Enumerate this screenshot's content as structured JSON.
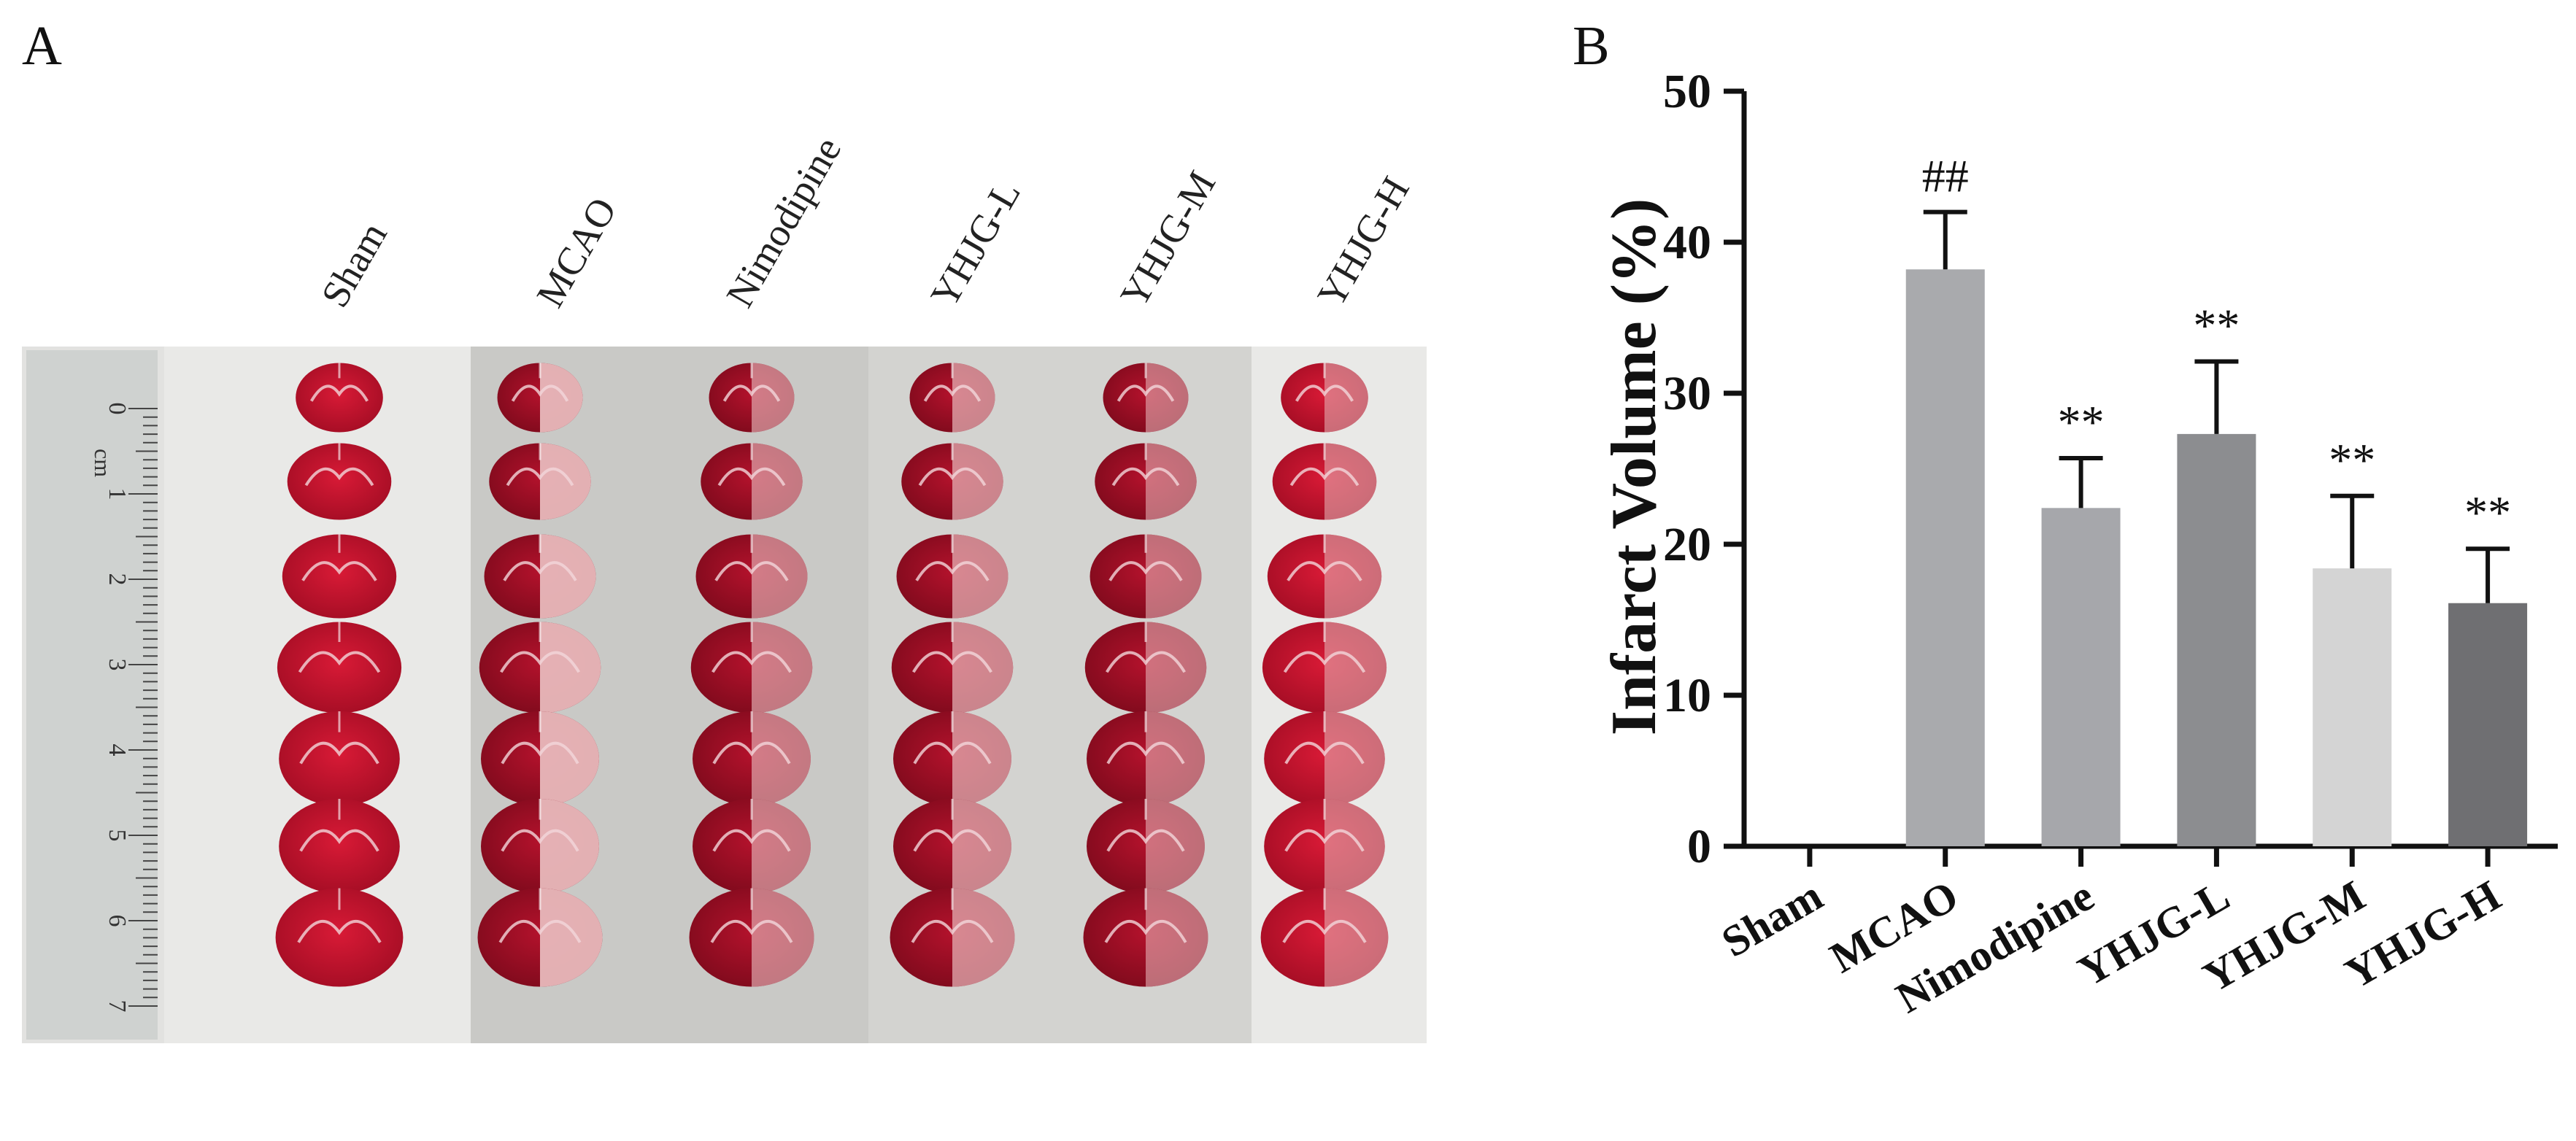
{
  "panels": {
    "a_label": "A",
    "b_label": "B"
  },
  "photo": {
    "group_labels": [
      "Sham",
      "MCAO",
      "Nimodipine",
      "YHJG-L",
      "YHJG-M",
      "YHJG-H"
    ],
    "ruler_unit": "cm",
    "ruler_numbers": [
      "0",
      "1",
      "2",
      "3",
      "4",
      "5",
      "6",
      "7"
    ],
    "slices_per_group": 7,
    "colors": {
      "tissue_red": "#c8102e",
      "infarct_pale": "#e8b9bc",
      "background_light": "#d9d9d6",
      "background_dark": "#c5c5c2"
    }
  },
  "chart_data": {
    "type": "bar",
    "categories": [
      "Sham",
      "MCAO",
      "Nimodipine",
      "YHJG-L",
      "YHJG-M",
      "YHJG-H"
    ],
    "values": [
      0,
      38.2,
      22.4,
      27.3,
      18.4,
      16.1
    ],
    "errors": [
      0,
      3.8,
      3.3,
      4.8,
      4.8,
      3.6
    ],
    "annotations": [
      "",
      "##",
      "**",
      "**",
      "**",
      "**"
    ],
    "bar_colors": [
      "#ffffff",
      "#a9aaad",
      "#a6a7ab",
      "#8c8d90",
      "#d4d4d4",
      "#6f6f72"
    ],
    "ylabel": "Infarct Volume (%)",
    "ylim": [
      0,
      50
    ],
    "yticks": [
      0,
      10,
      20,
      30,
      40,
      50
    ],
    "grid": false
  }
}
